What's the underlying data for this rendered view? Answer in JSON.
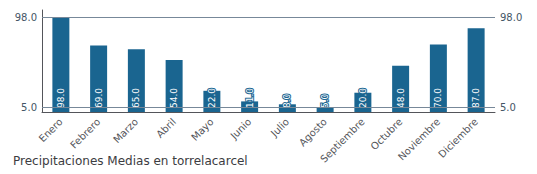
{
  "chart_data": {
    "type": "bar",
    "title": "Precipitaciones Medias en torrelacarcel",
    "categories": [
      "Enero",
      "Febrero",
      "Marzo",
      "Abril",
      "Mayo",
      "Junio",
      "Julio",
      "Agosto",
      "Septiembre",
      "Octubre",
      "Noviembre",
      "Diciembre"
    ],
    "values": [
      98.0,
      69.0,
      65.0,
      54.0,
      22.0,
      11.0,
      8.0,
      5.0,
      20.0,
      48.0,
      70.0,
      87.0
    ],
    "value_labels": [
      "98.0",
      "69.0",
      "65.0",
      "54.0",
      "22.0",
      "11.0",
      "8.0",
      "5.0",
      "20.0",
      "48.0",
      "70.0",
      "87.0"
    ],
    "data_labels": true,
    "color": "#1a6590",
    "ylim": [
      0,
      105.84
    ],
    "tick_labels": "x",
    "grid": false,
    "annotations": [
      {
        "text": "98.0",
        "y": 98.0
      },
      {
        "text": "5.0",
        "y": 5.0
      }
    ]
  }
}
